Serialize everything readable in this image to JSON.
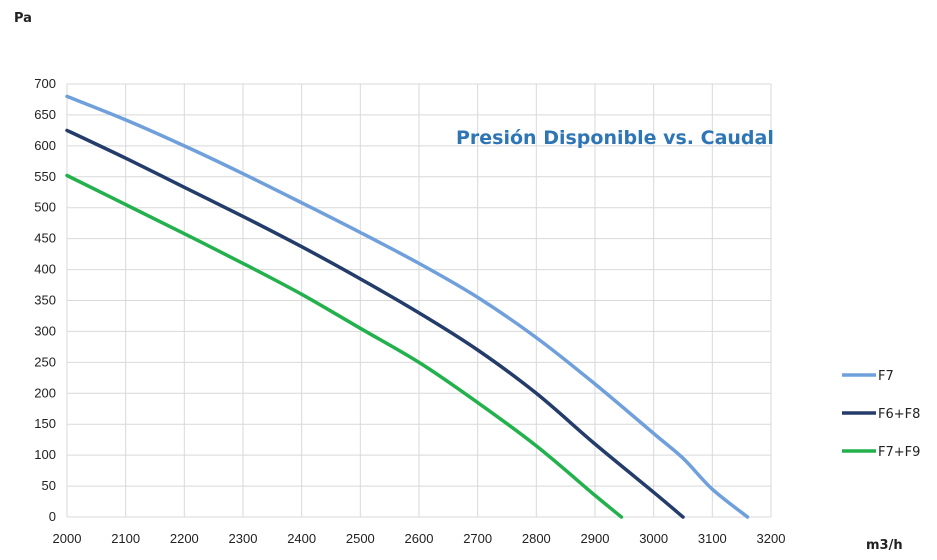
{
  "chart_data": {
    "type": "line",
    "title": "Presión Disponible vs. Caudal",
    "ylabel": "Pa",
    "xlabel": "m3/h",
    "xlim": [
      2000,
      3200
    ],
    "ylim": [
      0,
      700
    ],
    "xticks": [
      2000,
      2100,
      2200,
      2300,
      2400,
      2500,
      2600,
      2700,
      2800,
      2900,
      3000,
      3100,
      3200
    ],
    "yticks": [
      0,
      50,
      100,
      150,
      200,
      250,
      300,
      350,
      400,
      450,
      500,
      550,
      600,
      650,
      700
    ],
    "grid": true,
    "legend": "right",
    "series": [
      {
        "name": "F7",
        "color": "#6fa0dc",
        "x": [
          2000,
          2100,
          2200,
          2300,
          2400,
          2500,
          2600,
          2700,
          2800,
          2900,
          3000,
          3050,
          3100,
          3160
        ],
        "y": [
          680,
          642,
          600,
          555,
          508,
          460,
          410,
          355,
          290,
          215,
          135,
          95,
          45,
          0
        ]
      },
      {
        "name": "F6+F8",
        "color": "#233c6a",
        "x": [
          2000,
          2100,
          2200,
          2300,
          2400,
          2500,
          2600,
          2700,
          2800,
          2900,
          3000,
          3050
        ],
        "y": [
          625,
          580,
          533,
          486,
          437,
          385,
          330,
          270,
          200,
          118,
          40,
          0
        ]
      },
      {
        "name": "F7+F9",
        "color": "#22b14c",
        "x": [
          2000,
          2100,
          2200,
          2300,
          2400,
          2500,
          2600,
          2700,
          2800,
          2900,
          2945
        ],
        "y": [
          552,
          505,
          458,
          410,
          360,
          305,
          250,
          185,
          115,
          35,
          0
        ]
      }
    ]
  }
}
